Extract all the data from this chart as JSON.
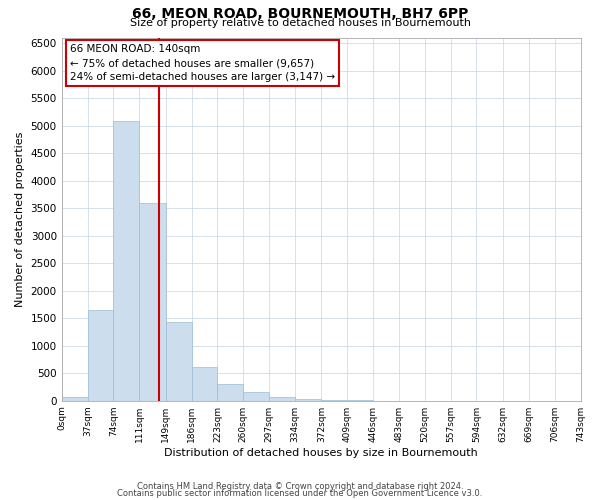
{
  "title": "66, MEON ROAD, BOURNEMOUTH, BH7 6PP",
  "subtitle": "Size of property relative to detached houses in Bournemouth",
  "xlabel": "Distribution of detached houses by size in Bournemouth",
  "ylabel": "Number of detached properties",
  "footer_line1": "Contains HM Land Registry data © Crown copyright and database right 2024.",
  "footer_line2": "Contains public sector information licensed under the Open Government Licence v3.0.",
  "bar_edges": [
    0,
    37,
    74,
    111,
    149,
    186,
    223,
    260,
    297,
    334,
    372,
    409,
    446,
    483,
    520,
    557,
    594,
    632,
    669,
    706,
    743
  ],
  "bar_heights": [
    60,
    1650,
    5080,
    3600,
    1430,
    620,
    300,
    150,
    70,
    30,
    10,
    5,
    0,
    0,
    0,
    0,
    0,
    0,
    0,
    0
  ],
  "bar_color": "#ccdded",
  "bar_edgecolor": "#9bbdd4",
  "vline_x": 140,
  "vline_color": "#cc0000",
  "ylim": [
    0,
    6600
  ],
  "yticks": [
    0,
    500,
    1000,
    1500,
    2000,
    2500,
    3000,
    3500,
    4000,
    4500,
    5000,
    5500,
    6000,
    6500
  ],
  "annotation_title": "66 MEON ROAD: 140sqm",
  "annotation_line1": "← 75% of detached houses are smaller (9,657)",
  "annotation_line2": "24% of semi-detached houses are larger (3,147) →",
  "annotation_box_color": "#cc0000",
  "tick_labels": [
    "0sqm",
    "37sqm",
    "74sqm",
    "111sqm",
    "149sqm",
    "186sqm",
    "223sqm",
    "260sqm",
    "297sqm",
    "334sqm",
    "372sqm",
    "409sqm",
    "446sqm",
    "483sqm",
    "520sqm",
    "557sqm",
    "594sqm",
    "632sqm",
    "669sqm",
    "706sqm",
    "743sqm"
  ],
  "grid_color": "#d0dce8",
  "background_color": "#ffffff",
  "title_fontsize": 10,
  "subtitle_fontsize": 8,
  "xlabel_fontsize": 8,
  "ylabel_fontsize": 8,
  "tick_fontsize": 6.5,
  "ytick_fontsize": 7.5,
  "annotation_fontsize": 7.5,
  "footer_fontsize": 6
}
